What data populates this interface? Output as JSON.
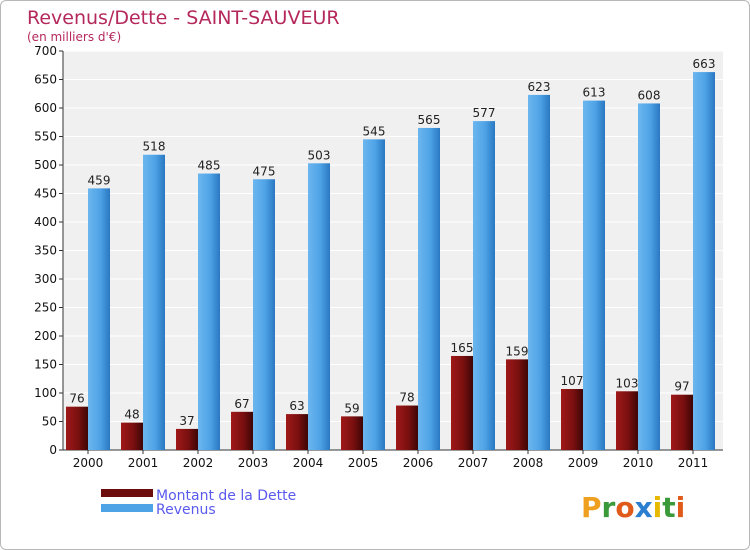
{
  "chart_data": {
    "type": "bar",
    "title": "Revenus/Dette - SAINT-SAUVEUR",
    "subtitle": "(en milliers d'€)",
    "categories": [
      "2000",
      "2001",
      "2002",
      "2003",
      "2004",
      "2005",
      "2006",
      "2007",
      "2008",
      "2009",
      "2010",
      "2011"
    ],
    "series": [
      {
        "name": "Montant de la Dette",
        "color": "#7b1111",
        "values": [
          76,
          48,
          37,
          67,
          63,
          59,
          78,
          165,
          159,
          107,
          103,
          97
        ]
      },
      {
        "name": "Revenus",
        "color": "#4ea3e6",
        "values": [
          459,
          518,
          485,
          475,
          503,
          545,
          565,
          577,
          623,
          613,
          608,
          663
        ]
      }
    ],
    "ylim": [
      0,
      700
    ],
    "yticks": [
      0,
      50,
      100,
      150,
      200,
      250,
      300,
      350,
      400,
      450,
      500,
      550,
      600,
      650,
      700
    ],
    "grid": true,
    "legend": "bottom-left"
  },
  "logo": {
    "letters": [
      "P",
      "r",
      "o",
      "x",
      "i",
      "t",
      "i"
    ],
    "colors": [
      "#f0a020",
      "#3a9a3a",
      "#e05a1a",
      "#2c7fd0",
      "#e6b800",
      "#3a9a3a",
      "#e05a1a"
    ]
  }
}
